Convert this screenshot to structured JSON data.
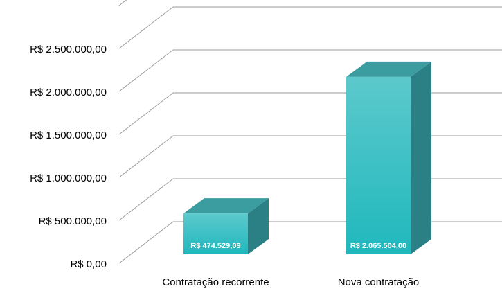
{
  "chart_data": {
    "type": "bar3d",
    "categories": [
      "Contratação recorrente",
      "Nova contratação"
    ],
    "values": [
      474529.09,
      2065504.0
    ],
    "value_labels": [
      "R$ 474.529,09",
      "R$ 2.065.504,00"
    ],
    "color": "#2bbfc4",
    "ylim": [
      0,
      3000000
    ],
    "yticks": [
      {
        "value": 0,
        "label": "R$ 0,00"
      },
      {
        "value": 500000,
        "label": "R$ 500.000,00"
      },
      {
        "value": 1000000,
        "label": "R$ 1.000.000,00"
      },
      {
        "value": 1500000,
        "label": "R$ 1.500.000,00"
      },
      {
        "value": 2000000,
        "label": "R$ 2.000.000,00"
      },
      {
        "value": 2500000,
        "label": "R$ 2.500.000,00"
      }
    ],
    "grid": true
  }
}
